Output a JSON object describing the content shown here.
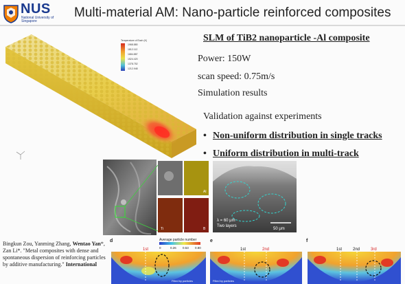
{
  "logo": {
    "name": "NUS",
    "subtitle": "National University of Singapore"
  },
  "slide": {
    "title": "Multi-material AM: Nano-particle reinforced composites"
  },
  "simulation": {
    "legend_title": "Temperature of Each (K)",
    "legend_values": [
      "1968.880",
      "1812.112",
      "1684.887",
      "1524.420",
      "1378.752",
      "1212.948"
    ]
  },
  "right_panel": {
    "subheading": "SLM of TiB2 nanoparticle -Al composite",
    "power": "Power: 150W",
    "scan_speed": "scan speed: 0.75m/s",
    "simulation_results": "Simulation results",
    "validation": "Validation against experiments",
    "bullets": [
      "Non-uniform distribution in single tracks",
      "Uniform distribution in multi-track"
    ]
  },
  "micrograph": {
    "labels": [
      "Al",
      "Ti",
      "B"
    ]
  },
  "cross_section": {
    "lambda_label": "λ = 60 μm",
    "layers_label": "Two layers",
    "scale_label": "50 μm"
  },
  "maps": {
    "colorbar_title": "Average particle number",
    "colorbar_ticks": [
      "0",
      "0.26",
      "0.53",
      "0.80"
    ],
    "panels": [
      {
        "letter": "d",
        "tracks": [
          "1st"
        ],
        "note": "Filled by particles"
      },
      {
        "letter": "e",
        "tracks": [
          "1st",
          "2nd"
        ],
        "note": "Filled by particles"
      },
      {
        "letter": "f",
        "tracks": [
          "1st",
          "2nd",
          "3rd"
        ],
        "note": ""
      }
    ]
  },
  "citation": {
    "text_plain": "Bingkun Zou, Yanming Zhang, ",
    "text_bold1": "Wentao Yan",
    "text_plain2": "*, Zan Li*. \"Metal composites with dense and spontaneous dispersion of reinforcing particles by additive manufacturing.\" ",
    "text_bold2": "International"
  },
  "colors": {
    "nus_blue": "#1a3a8f",
    "nus_orange": "#ef7c00",
    "track_yellow": "#e4c93a",
    "hot_red": "#e8352a"
  }
}
